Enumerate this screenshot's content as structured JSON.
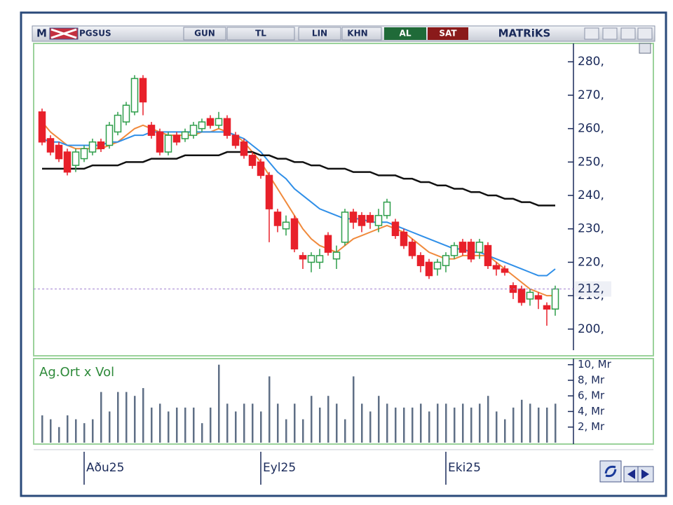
{
  "toolbar": {
    "mode": "M",
    "symbol": "PGSUS",
    "period": "GUN",
    "currency": "TL",
    "scale": "LIN",
    "chart_style": "KHN",
    "buy": "AL",
    "sell": "SAT",
    "brand": "MATRiKS"
  },
  "chart_data": [
    {
      "type": "candlestick",
      "categories": [
        null,
        null,
        null,
        null,
        null,
        "Aðu25",
        null,
        null,
        null,
        null,
        null,
        null,
        null,
        null,
        null,
        null,
        null,
        null,
        null,
        null,
        null,
        null,
        null,
        null,
        null,
        null,
        "Eyl25",
        null,
        null,
        null,
        null,
        null,
        null,
        null,
        null,
        null,
        null,
        null,
        null,
        null,
        null,
        null,
        null,
        null,
        null,
        null,
        null,
        null,
        "Eki25",
        null,
        null,
        null,
        null,
        null,
        null,
        null,
        null,
        null,
        null,
        null,
        null,
        null
      ],
      "open": [
        265,
        257,
        255,
        253,
        249,
        251,
        253,
        256,
        255,
        259,
        262,
        265,
        275,
        261,
        259,
        253,
        258,
        257,
        258,
        260,
        263,
        261,
        263,
        258,
        256,
        252,
        250,
        246,
        235,
        230,
        233,
        222,
        220,
        220,
        228,
        221,
        226,
        235,
        234,
        234,
        231,
        234,
        232,
        229,
        226,
        222,
        220,
        218,
        219,
        222,
        226,
        226,
        223,
        225,
        219,
        218,
        213,
        212,
        209,
        210,
        207,
        206
      ],
      "high": [
        266,
        258,
        256,
        254,
        254,
        255,
        257,
        257,
        262,
        265,
        268,
        276,
        276,
        262,
        260,
        259,
        259,
        260,
        262,
        263,
        264,
        265,
        264,
        259,
        257,
        253,
        251,
        247,
        236,
        234,
        234,
        223,
        223,
        224,
        229,
        225,
        236,
        236,
        235,
        235,
        236,
        239,
        233,
        230,
        227,
        223,
        221,
        221,
        223,
        226,
        227,
        227,
        227,
        226,
        220,
        219,
        214,
        213,
        212,
        211,
        208,
        213
      ],
      "low": [
        255,
        252,
        250,
        246,
        247,
        250,
        252,
        253,
        254,
        258,
        261,
        264,
        264,
        257,
        252,
        252,
        255,
        256,
        257,
        259,
        260,
        260,
        257,
        254,
        251,
        248,
        245,
        226,
        229,
        228,
        223,
        218,
        217,
        218,
        222,
        218,
        225,
        230,
        229,
        230,
        229,
        233,
        227,
        224,
        221,
        217,
        215,
        216,
        217,
        221,
        222,
        220,
        221,
        218,
        216,
        216,
        209,
        207,
        207,
        206,
        201,
        204
      ],
      "close": [
        256,
        253,
        251,
        247,
        253,
        254,
        256,
        254,
        261,
        264,
        267,
        275,
        268,
        258,
        253,
        258,
        256,
        259,
        261,
        262,
        261,
        263,
        258,
        255,
        252,
        249,
        246,
        236,
        231,
        232,
        224,
        221,
        222,
        222,
        223,
        223,
        235,
        232,
        231,
        232,
        234,
        238,
        228,
        225,
        222,
        219,
        216,
        220,
        222,
        225,
        223,
        221,
        226,
        219,
        218,
        217,
        211,
        208,
        211,
        209,
        206,
        212
      ],
      "up_color": "#2e9e4a",
      "down_color": "#e8202a",
      "lines": [
        {
          "color": "#f08a3c",
          "values": [
            262,
            259,
            257,
            255,
            254,
            254,
            254,
            254,
            255,
            256,
            258,
            260,
            261,
            260,
            259,
            258,
            258,
            258,
            258,
            259,
            259,
            260,
            259,
            258,
            256,
            253,
            250,
            246,
            242,
            238,
            234,
            230,
            227,
            225,
            224,
            223,
            225,
            227,
            228,
            229,
            230,
            231,
            230,
            229,
            227,
            225,
            223,
            222,
            221,
            221,
            222,
            222,
            222,
            222,
            220,
            218,
            216,
            214,
            212,
            211,
            210,
            210
          ]
        },
        {
          "color": "#2f8fe8",
          "values": [
            257,
            256,
            256,
            255,
            255,
            255,
            255,
            255,
            256,
            256,
            257,
            258,
            258,
            259,
            259,
            259,
            259,
            259,
            259,
            259,
            259,
            259,
            259,
            258,
            257,
            255,
            253,
            250,
            247,
            245,
            242,
            240,
            238,
            236,
            235,
            234,
            233,
            233,
            233,
            232,
            232,
            232,
            231,
            230,
            229,
            228,
            227,
            226,
            225,
            224,
            224,
            223,
            223,
            222,
            221,
            220,
            219,
            218,
            217,
            216,
            216,
            218
          ]
        },
        {
          "color": "#111111",
          "values": [
            248,
            248,
            248,
            248,
            248,
            248,
            249,
            249,
            249,
            249,
            250,
            250,
            250,
            251,
            251,
            251,
            251,
            252,
            252,
            252,
            252,
            252,
            253,
            253,
            253,
            253,
            252,
            252,
            251,
            251,
            250,
            250,
            249,
            249,
            248,
            248,
            248,
            247,
            247,
            247,
            246,
            246,
            246,
            245,
            245,
            244,
            244,
            243,
            243,
            242,
            242,
            241,
            241,
            240,
            240,
            239,
            239,
            238,
            238,
            237,
            237,
            237
          ]
        }
      ],
      "current_price": {
        "value": 212,
        "label": "212,"
      },
      "ylim": [
        192,
        285.5
      ],
      "yticks": [
        {
          "value": 200,
          "label": "200,"
        },
        {
          "value": 210,
          "label": "210,"
        },
        {
          "value": 220,
          "label": "220,"
        },
        {
          "value": 230,
          "label": "230,"
        },
        {
          "value": 240,
          "label": "240,"
        },
        {
          "value": 250,
          "label": "250,"
        },
        {
          "value": 260,
          "label": "260,"
        },
        {
          "value": 270,
          "label": "270,"
        },
        {
          "value": 280,
          "label": "280,"
        }
      ]
    },
    {
      "type": "bar",
      "title": "Ag.Ort x Vol",
      "color": "#5f6f86",
      "values": [
        3.5,
        3,
        2,
        3.5,
        3,
        2.5,
        3,
        6.5,
        4,
        6.5,
        6.5,
        6,
        7,
        4.5,
        5,
        4,
        4.5,
        4.5,
        4.5,
        2.5,
        4.5,
        10,
        5,
        4,
        5,
        5,
        4,
        8.5,
        5,
        3,
        5,
        3,
        6,
        4.5,
        6,
        5,
        3,
        8.5,
        5,
        4,
        6,
        5,
        4.5,
        4.5,
        4.5,
        5,
        4,
        5,
        5,
        4.5,
        5,
        4.5,
        5,
        6,
        4,
        3,
        4.5,
        5.5,
        5,
        4.5,
        4.5,
        5
      ],
      "ylim": [
        0,
        10.6
      ],
      "yticks": [
        {
          "value": 2,
          "label": "2, Mr"
        },
        {
          "value": 4,
          "label": "4, Mr"
        },
        {
          "value": 6,
          "label": "6, Mr"
        },
        {
          "value": 8,
          "label": "8, Mr"
        },
        {
          "value": 10,
          "label": "10, Mr"
        }
      ]
    }
  ]
}
